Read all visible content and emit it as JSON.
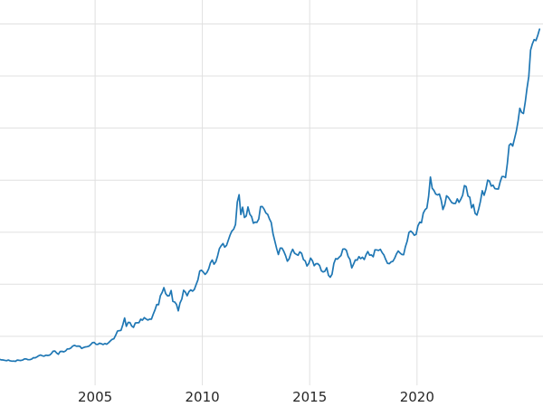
{
  "figure": {
    "background": "#ffffff",
    "line_color": "#1f77b4",
    "grid_color": "#e0e0e0",
    "tick_label_color": "#262626"
  },
  "chart_data": {
    "type": "line",
    "title": "",
    "xlabel": "",
    "ylabel": "",
    "grid": true,
    "legend": "none",
    "y_axis_labels_visible": false,
    "x_range": [
      2000.57,
      2025.87
    ],
    "y_range": [
      30,
      3730
    ],
    "y_gridlines": [
      500,
      1000,
      1500,
      2000,
      2500,
      3000,
      3500
    ],
    "x_ticks": [
      {
        "year": 2005,
        "label": "2005"
      },
      {
        "year": 2010,
        "label": "2010"
      },
      {
        "year": 2015,
        "label": "2015"
      },
      {
        "year": 2020,
        "label": "2020"
      }
    ],
    "series": [
      {
        "name": "price",
        "interval": "monthly",
        "start_year": 2000,
        "start_month": 7,
        "values": [
          281,
          274,
          273,
          270,
          266,
          272,
          265,
          262,
          263,
          260,
          272,
          270,
          268,
          272,
          284,
          283,
          276,
          276,
          281,
          295,
          294,
          303,
          314,
          321,
          313,
          310,
          319,
          317,
          319,
          333,
          357,
          359,
          340,
          328,
          355,
          356,
          351,
          360,
          379,
          379,
          389,
          407,
          414,
          405,
          407,
          404,
          384,
          392,
          398,
          401,
          405,
          420,
          439,
          442,
          424,
          423,
          434,
          429,
          422,
          431,
          424,
          438,
          456,
          470,
          476,
          510,
          550,
          555,
          557,
          611,
          676,
          596,
          634,
          633,
          598,
          586,
          628,
          630,
          631,
          665,
          655,
          680,
          667,
          656,
          665,
          665,
          713,
          755,
          806,
          804,
          890,
          922,
          968,
          910,
          889,
          891,
          940,
          836,
          830,
          807,
          745,
          820,
          858,
          943,
          924,
          890,
          929,
          946,
          934,
          950,
          997,
          1043,
          1127,
          1135,
          1118,
          1095,
          1113,
          1149,
          1205,
          1233,
          1193,
          1216,
          1271,
          1342,
          1370,
          1391,
          1356,
          1373,
          1424,
          1474,
          1511,
          1529,
          1573,
          1790,
          1860,
          1670,
          1740,
          1641,
          1656,
          1743,
          1674,
          1650,
          1586,
          1597,
          1594,
          1626,
          1745,
          1747,
          1722,
          1685,
          1671,
          1628,
          1593,
          1485,
          1414,
          1343,
          1286,
          1347,
          1348,
          1316,
          1276,
          1222,
          1244,
          1301,
          1336,
          1299,
          1288,
          1279,
          1311,
          1296,
          1237,
          1223,
          1176,
          1200,
          1251,
          1227,
          1178,
          1197,
          1198,
          1181,
          1130,
          1118,
          1125,
          1159,
          1086,
          1068,
          1097,
          1200,
          1246,
          1242,
          1260,
          1276,
          1337,
          1340,
          1327,
          1267,
          1238,
          1157,
          1192,
          1234,
          1231,
          1266,
          1246,
          1260,
          1237,
          1283,
          1315,
          1280,
          1282,
          1264,
          1331,
          1330,
          1325,
          1335,
          1303,
          1282,
          1238,
          1201,
          1198,
          1215,
          1221,
          1250,
          1292,
          1320,
          1301,
          1286,
          1284,
          1359,
          1413,
          1499,
          1511,
          1495,
          1471,
          1480,
          1561,
          1597,
          1592,
          1683,
          1716,
          1732,
          1843,
          2030,
          1922,
          1900,
          1866,
          1858,
          1867,
          1808,
          1718,
          1762,
          1850,
          1835,
          1808,
          1784,
          1777,
          1777,
          1820,
          1787,
          1817,
          1856,
          1948,
          1937,
          1848,
          1836,
          1733,
          1766,
          1681,
          1665,
          1725,
          1798,
          1898,
          1855,
          1913,
          2000,
          1992,
          1943,
          1951,
          1919,
          1916,
          1915,
          1984,
          2035,
          2035,
          2025,
          2160,
          2335,
          2351,
          2327,
          2398,
          2470,
          2570,
          2690,
          2650,
          2640,
          2750,
          2880,
          2995,
          3250,
          3310,
          3350,
          3340,
          3390,
          3450
        ]
      }
    ]
  }
}
